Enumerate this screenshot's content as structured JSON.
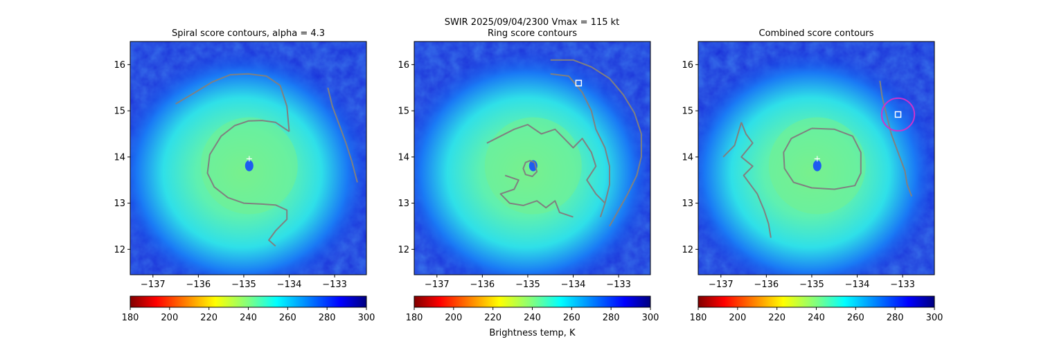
{
  "suptitle": {
    "line1": "SWIR  2025/09/04/2300    Vmax = 115 kt"
  },
  "chart_data": [
    {
      "type": "heatmap",
      "title": "Spiral score contours, alpha =  4.3",
      "xlim": [
        -137.5,
        -132.3
      ],
      "ylim": [
        11.45,
        16.5
      ],
      "xticks": [
        -137,
        -136,
        -135,
        -134,
        -133
      ],
      "yticks": [
        12,
        13,
        14,
        15,
        16
      ],
      "center_marker": {
        "symbol": "plus",
        "x": -134.88,
        "y": 13.96,
        "color": "#ffffff"
      },
      "contours": [
        {
          "name": "inner-spiral",
          "color": "#808080",
          "points": [
            [
              -134.0,
              14.55
            ],
            [
              -134.3,
              14.75
            ],
            [
              -134.6,
              14.79
            ],
            [
              -134.9,
              14.78
            ],
            [
              -135.2,
              14.68
            ],
            [
              -135.5,
              14.45
            ],
            [
              -135.75,
              14.05
            ],
            [
              -135.8,
              13.65
            ],
            [
              -135.65,
              13.35
            ],
            [
              -135.35,
              13.12
            ],
            [
              -135.0,
              13.0
            ],
            [
              -134.6,
              12.98
            ],
            [
              -134.3,
              12.96
            ],
            [
              -134.05,
              12.85
            ],
            [
              -134.05,
              12.65
            ],
            [
              -134.3,
              12.4
            ],
            [
              -134.45,
              12.2
            ],
            [
              -134.3,
              12.07
            ]
          ]
        },
        {
          "name": "outer-arc",
          "color": "#808080",
          "points": [
            [
              -136.5,
              15.15
            ],
            [
              -136.1,
              15.38
            ],
            [
              -135.7,
              15.62
            ],
            [
              -135.3,
              15.78
            ],
            [
              -134.9,
              15.8
            ],
            [
              -134.5,
              15.75
            ],
            [
              -134.2,
              15.55
            ],
            [
              -134.05,
              15.1
            ],
            [
              -134.0,
              14.55
            ]
          ]
        },
        {
          "name": "eastern-band",
          "color": "#808080",
          "points": [
            [
              -133.15,
              15.5
            ],
            [
              -133.05,
              15.1
            ],
            [
              -132.9,
              14.7
            ],
            [
              -132.75,
              14.3
            ],
            [
              -132.62,
              13.9
            ],
            [
              -132.5,
              13.45
            ]
          ]
        }
      ]
    },
    {
      "type": "heatmap",
      "title": "Ring score contours",
      "xlim": [
        -137.5,
        -132.3
      ],
      "ylim": [
        11.45,
        16.5
      ],
      "xticks": [
        -137,
        -136,
        -135,
        -134,
        -133
      ],
      "yticks": [
        12,
        13,
        14,
        15,
        16
      ],
      "center_marker": {
        "symbol": "square",
        "x": -133.88,
        "y": 15.6,
        "color": "#ffffff"
      },
      "contours": [
        {
          "name": "eye-ring",
          "color": "#808080",
          "points": [
            [
              -134.85,
              13.88
            ],
            [
              -134.95,
              13.92
            ],
            [
              -135.05,
              13.88
            ],
            [
              -135.1,
              13.75
            ],
            [
              -135.05,
              13.62
            ],
            [
              -134.9,
              13.58
            ],
            [
              -134.8,
              13.68
            ],
            [
              -134.85,
              13.88
            ]
          ]
        },
        {
          "name": "ring-noise-west",
          "color": "#808080",
          "points": [
            [
              -135.5,
              13.6
            ],
            [
              -135.2,
              13.5
            ],
            [
              -135.3,
              13.3
            ],
            [
              -135.6,
              13.2
            ],
            [
              -135.4,
              13.0
            ],
            [
              -135.1,
              12.95
            ],
            [
              -134.8,
              13.05
            ],
            [
              -134.6,
              12.9
            ],
            [
              -134.4,
              13.05
            ],
            [
              -134.3,
              12.8
            ],
            [
              -134.0,
              12.7
            ]
          ]
        },
        {
          "name": "ring-noise-north",
          "color": "#808080",
          "points": [
            [
              -135.9,
              14.3
            ],
            [
              -135.6,
              14.45
            ],
            [
              -135.3,
              14.6
            ],
            [
              -135.0,
              14.7
            ],
            [
              -134.7,
              14.5
            ],
            [
              -134.4,
              14.6
            ],
            [
              -134.2,
              14.4
            ],
            [
              -134.0,
              14.2
            ],
            [
              -133.8,
              14.4
            ],
            [
              -133.6,
              14.1
            ],
            [
              -133.5,
              13.8
            ],
            [
              -133.7,
              13.5
            ],
            [
              -133.5,
              13.2
            ],
            [
              -133.3,
              13.0
            ]
          ]
        },
        {
          "name": "ring-band-east",
          "color": "#808080",
          "points": [
            [
              -134.5,
              16.1
            ],
            [
              -134.0,
              16.1
            ],
            [
              -133.6,
              15.95
            ],
            [
              -133.2,
              15.7
            ],
            [
              -132.9,
              15.35
            ],
            [
              -132.65,
              14.95
            ],
            [
              -132.5,
              14.5
            ],
            [
              -132.5,
              14.0
            ],
            [
              -132.6,
              13.6
            ],
            [
              -132.8,
              13.2
            ],
            [
              -133.0,
              12.85
            ],
            [
              -133.2,
              12.5
            ]
          ]
        },
        {
          "name": "ring-band-inner",
          "color": "#808080",
          "points": [
            [
              -134.5,
              15.8
            ],
            [
              -134.1,
              15.75
            ],
            [
              -133.8,
              15.4
            ],
            [
              -133.6,
              15.0
            ],
            [
              -133.5,
              14.6
            ],
            [
              -133.3,
              14.2
            ],
            [
              -133.2,
              13.8
            ],
            [
              -133.2,
              13.4
            ],
            [
              -133.3,
              13.0
            ],
            [
              -133.4,
              12.7
            ]
          ]
        }
      ]
    },
    {
      "type": "heatmap",
      "title": "Combined score contours",
      "xlim": [
        -137.5,
        -132.3
      ],
      "ylim": [
        11.45,
        16.5
      ],
      "xticks": [
        -137,
        -136,
        -135,
        -134,
        -133
      ],
      "yticks": [
        12,
        13,
        14,
        15,
        16
      ],
      "center_marker": {
        "symbol": "square",
        "x": -133.1,
        "y": 14.92,
        "color": "#ffffff"
      },
      "plus_marker": {
        "symbol": "plus",
        "x": -134.88,
        "y": 13.96,
        "color": "#ffffff"
      },
      "circle": {
        "x": -133.1,
        "y": 14.92,
        "r": 0.36,
        "color": "#cc33cc"
      },
      "contours": [
        {
          "name": "inner-ring",
          "color": "#808080",
          "points": [
            [
              -135.0,
              14.62
            ],
            [
              -134.5,
              14.6
            ],
            [
              -134.1,
              14.45
            ],
            [
              -133.92,
              14.1
            ],
            [
              -133.92,
              13.65
            ],
            [
              -134.05,
              13.38
            ],
            [
              -134.5,
              13.3
            ],
            [
              -135.0,
              13.33
            ],
            [
              -135.4,
              13.45
            ],
            [
              -135.6,
              13.75
            ],
            [
              -135.62,
              14.1
            ],
            [
              -135.45,
              14.4
            ],
            [
              -135.0,
              14.62
            ]
          ]
        },
        {
          "name": "west-band",
          "color": "#808080",
          "points": [
            [
              -136.55,
              14.75
            ],
            [
              -136.45,
              14.5
            ],
            [
              -136.3,
              14.3
            ],
            [
              -136.55,
              14.0
            ],
            [
              -136.3,
              13.8
            ],
            [
              -136.5,
              13.6
            ],
            [
              -136.2,
              13.2
            ],
            [
              -136.05,
              12.85
            ],
            [
              -135.95,
              12.55
            ],
            [
              -135.9,
              12.25
            ]
          ]
        },
        {
          "name": "east-band",
          "color": "#808080",
          "points": [
            [
              -133.5,
              15.65
            ],
            [
              -133.45,
              15.3
            ],
            [
              -133.35,
              14.9
            ],
            [
              -133.25,
              14.5
            ],
            [
              -133.1,
              14.1
            ],
            [
              -132.95,
              13.7
            ],
            [
              -132.9,
              13.4
            ],
            [
              -132.8,
              13.15
            ]
          ]
        },
        {
          "name": "west-band-top",
          "color": "#808080",
          "points": [
            [
              -136.95,
              14.0
            ],
            [
              -136.7,
              14.25
            ],
            [
              -136.55,
              14.75
            ]
          ]
        }
      ]
    }
  ],
  "colorbar": {
    "ticks": [
      180,
      200,
      220,
      240,
      260,
      280,
      300
    ],
    "range": [
      180,
      300
    ],
    "colormap": "jet_r",
    "label": "Brightness temp, K"
  },
  "storm": {
    "eye": {
      "x": -134.88,
      "y": 13.96
    },
    "eye_wall_temp": 238,
    "background_temp": 283
  }
}
